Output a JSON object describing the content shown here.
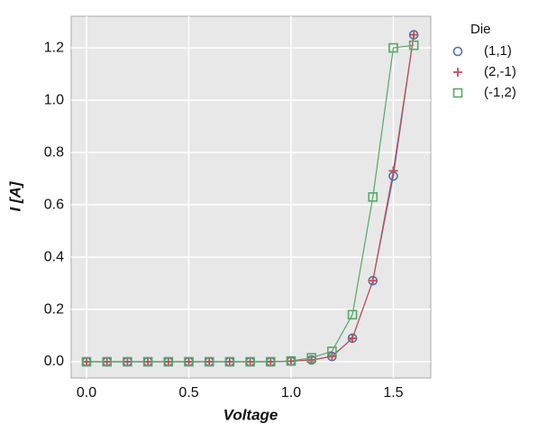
{
  "chart_data": {
    "type": "line",
    "x_label": "Voltage",
    "y_label": "I [A]",
    "x": [
      0.0,
      0.1,
      0.2,
      0.3,
      0.4,
      0.5,
      0.6,
      0.7,
      0.8,
      0.9,
      1.0,
      1.1,
      1.2,
      1.3,
      1.4,
      1.5,
      1.6
    ],
    "series": [
      {
        "name": "(1,1)",
        "color": "#4c72b0",
        "marker": "circle",
        "values": [
          0,
          0,
          0,
          0,
          0,
          0,
          0,
          0,
          0,
          0,
          0.002,
          0.007,
          0.02,
          0.09,
          0.31,
          0.71,
          1.25
        ]
      },
      {
        "name": "(2,-1)",
        "color": "#c44e52",
        "marker": "plus",
        "values": [
          0,
          0,
          0,
          0,
          0,
          0,
          0,
          0,
          0,
          0,
          0.002,
          0.007,
          0.02,
          0.09,
          0.31,
          0.73,
          1.25
        ]
      },
      {
        "name": "(-1,2)",
        "color": "#55a868",
        "marker": "square",
        "values": [
          0,
          0,
          0,
          0,
          0,
          0,
          0,
          0,
          0,
          0,
          0.003,
          0.015,
          0.04,
          0.18,
          0.63,
          1.2,
          1.21
        ]
      }
    ],
    "legend_title": "Die",
    "legend_position": "outside-right",
    "xlim": [
      -0.075,
      1.683
    ],
    "xticks": [
      {
        "value": 0,
        "label": "0.0"
      },
      0.5,
      {
        "value": 1,
        "label": "1.0"
      },
      1.5
    ],
    "ylim": [
      -0.062,
      1.321
    ],
    "yticks": [
      {
        "value": 0,
        "label": "0.0"
      },
      0.2,
      0.4,
      0.6,
      0.8,
      {
        "value": 1,
        "label": "1.0"
      },
      1.2
    ],
    "grid": true
  }
}
